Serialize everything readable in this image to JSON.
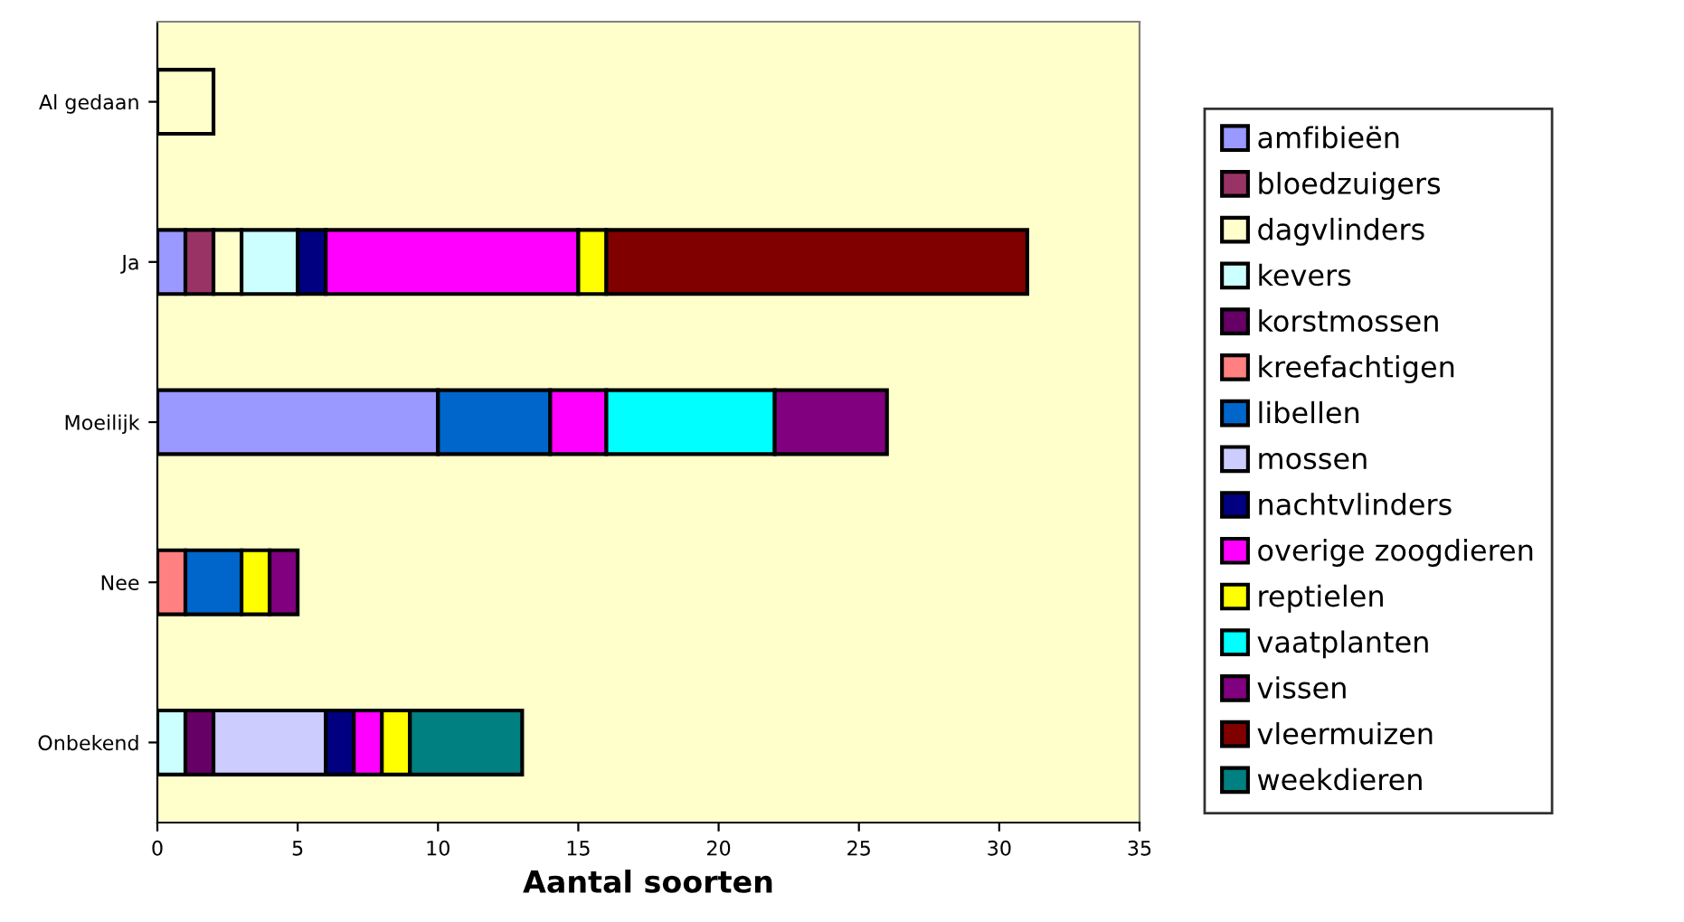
{
  "chart_data": {
    "type": "bar",
    "orientation": "horizontal",
    "stacked": true,
    "xlabel": "Aantal soorten",
    "categories": [
      "Al gedaan",
      "Ja",
      "Moeilijk",
      "Nee",
      "Onbekend"
    ],
    "series": [
      {
        "name": "amfibieën",
        "color": "#9999ff",
        "values": [
          null,
          1,
          10,
          null,
          null
        ]
      },
      {
        "name": "bloedzuigers",
        "color": "#993366",
        "values": [
          null,
          1,
          null,
          null,
          null
        ]
      },
      {
        "name": "dagvlinders",
        "color": "#ffffcc",
        "values": [
          2,
          1,
          null,
          null,
          null
        ]
      },
      {
        "name": "kevers",
        "color": "#ccffff",
        "values": [
          null,
          2,
          null,
          null,
          1
        ]
      },
      {
        "name": "korstmossen",
        "color": "#660066",
        "values": [
          null,
          null,
          null,
          null,
          1
        ]
      },
      {
        "name": "kreefachtigen",
        "color": "#ff8080",
        "values": [
          null,
          null,
          null,
          1,
          null
        ]
      },
      {
        "name": "libellen",
        "color": "#0066cc",
        "values": [
          null,
          null,
          4,
          2,
          null
        ]
      },
      {
        "name": "mossen",
        "color": "#ccccff",
        "values": [
          null,
          null,
          null,
          null,
          4
        ]
      },
      {
        "name": "nachtvlinders",
        "color": "#000080",
        "values": [
          null,
          1,
          null,
          null,
          1
        ]
      },
      {
        "name": "overige zoogdieren",
        "color": "#ff00ff",
        "values": [
          null,
          9,
          2,
          null,
          1
        ]
      },
      {
        "name": "reptielen",
        "color": "#ffff00",
        "values": [
          null,
          1,
          null,
          1,
          1
        ]
      },
      {
        "name": "vaatplanten",
        "color": "#00ffff",
        "values": [
          null,
          null,
          6,
          null,
          null
        ]
      },
      {
        "name": "vissen",
        "color": "#800080",
        "values": [
          null,
          null,
          4,
          1,
          null
        ]
      },
      {
        "name": "vleermuizen",
        "color": "#800000",
        "values": [
          null,
          15,
          null,
          null,
          null
        ]
      },
      {
        "name": "weekdieren",
        "color": "#008080",
        "values": [
          null,
          null,
          null,
          null,
          4
        ]
      }
    ],
    "xlim": [
      0,
      35
    ],
    "xticks": [
      0,
      5,
      10,
      15,
      20,
      25,
      30,
      35
    ],
    "grid": false,
    "legend": "right"
  }
}
